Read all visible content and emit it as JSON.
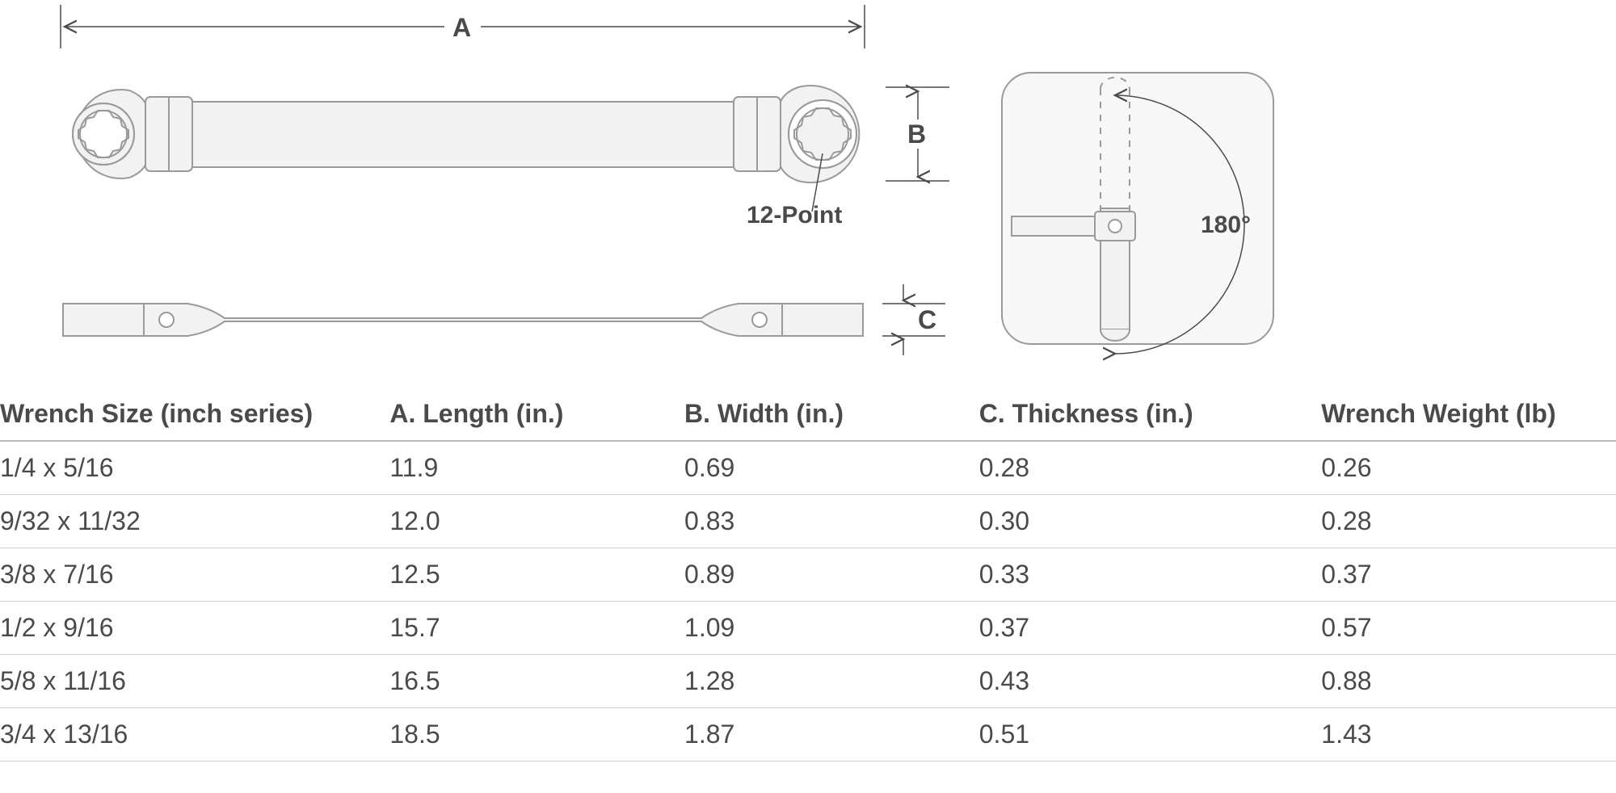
{
  "diagram": {
    "dimension_labels": {
      "A": "A",
      "B": "B",
      "C": "C"
    },
    "point_label": "12-Point",
    "flex_angle": "180°",
    "colors": {
      "stroke": "#9a9a9a",
      "fill": "#f2f2f2",
      "dimline": "#4a4a4a",
      "text": "#4a4a4a",
      "bg": "#ffffff",
      "panel_bg": "#f7f7f7",
      "dashed": "#9a9a9a"
    },
    "stroke_width": 2,
    "dim_line_width": 1.5,
    "font_size_label": 32,
    "font_size_annotation": 30
  },
  "table": {
    "columns": [
      "Wrench Size (inch series)",
      "A. Length (in.)",
      "B. Width (in.)",
      "C. Thickness (in.)",
      "Wrench Weight (lb)"
    ],
    "rows": [
      [
        "1/4 x 5/16",
        "11.9",
        "0.69",
        "0.28",
        "0.26"
      ],
      [
        "9/32 x 11/32",
        "12.0",
        "0.83",
        "0.30",
        "0.28"
      ],
      [
        "3/8 x 7/16",
        "12.5",
        "0.89",
        "0.33",
        "0.37"
      ],
      [
        "1/2 x 9/16",
        "15.7",
        "1.09",
        "0.37",
        "0.57"
      ],
      [
        "5/8 x 11/16",
        "16.5",
        "1.28",
        "0.43",
        "0.88"
      ],
      [
        "3/4 x 13/16",
        "18.5",
        "1.87",
        "0.51",
        "1.43"
      ]
    ],
    "header_fontsize": 32,
    "cell_fontsize": 32,
    "header_border_color": "#b8b8b8",
    "row_border_color": "#cfcfcf",
    "text_color": "#4a4a4a"
  }
}
